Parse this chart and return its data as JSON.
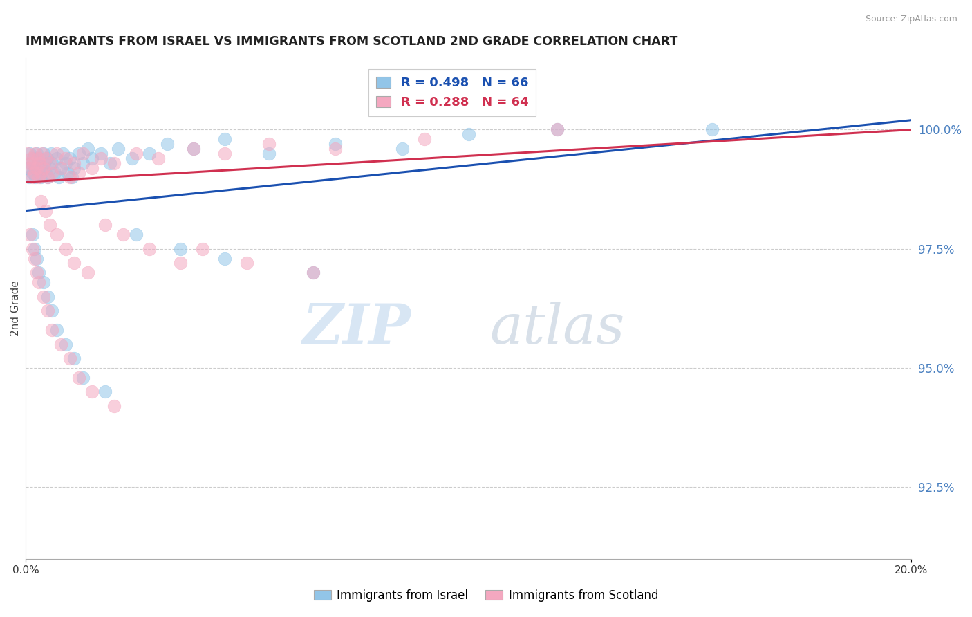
{
  "title": "IMMIGRANTS FROM ISRAEL VS IMMIGRANTS FROM SCOTLAND 2ND GRADE CORRELATION CHART",
  "source": "Source: ZipAtlas.com",
  "ylabel": "2nd Grade",
  "y_ticks": [
    92.5,
    95.0,
    97.5,
    100.0
  ],
  "y_tick_labels": [
    "92.5%",
    "95.0%",
    "97.5%",
    "100.0%"
  ],
  "x_min": 0.0,
  "x_max": 20.0,
  "y_min": 91.0,
  "y_max": 101.5,
  "legend_blue_R": "R = 0.498",
  "legend_blue_N": "N = 66",
  "legend_pink_R": "R = 0.288",
  "legend_pink_N": "N = 64",
  "legend_label_blue": "Immigrants from Israel",
  "legend_label_pink": "Immigrants from Scotland",
  "color_blue": "#92C5E8",
  "color_pink": "#F4A8C0",
  "color_line_blue": "#1A50B0",
  "color_line_pink": "#D03050",
  "color_axis_right": "#4A80C0",
  "trendline_blue_x0": 0.0,
  "trendline_blue_y0": 98.3,
  "trendline_blue_x1": 20.0,
  "trendline_blue_y1": 100.2,
  "trendline_pink_x0": 0.0,
  "trendline_pink_y0": 98.9,
  "trendline_pink_x1": 20.0,
  "trendline_pink_y1": 100.0,
  "israel_x": [
    0.05,
    0.08,
    0.1,
    0.12,
    0.15,
    0.18,
    0.2,
    0.22,
    0.25,
    0.28,
    0.3,
    0.32,
    0.35,
    0.38,
    0.4,
    0.42,
    0.45,
    0.48,
    0.5,
    0.55,
    0.58,
    0.6,
    0.65,
    0.7,
    0.75,
    0.8,
    0.85,
    0.9,
    0.95,
    1.0,
    1.05,
    1.1,
    1.2,
    1.3,
    1.4,
    1.5,
    1.7,
    1.9,
    2.1,
    2.4,
    2.8,
    3.2,
    3.8,
    4.5,
    5.5,
    7.0,
    8.5,
    10.0,
    12.0,
    15.5,
    0.15,
    0.2,
    0.25,
    0.3,
    0.4,
    0.5,
    0.6,
    0.7,
    0.9,
    1.1,
    1.3,
    1.8,
    2.5,
    3.5,
    4.5,
    6.5
  ],
  "israel_y": [
    99.2,
    99.0,
    99.5,
    99.3,
    99.1,
    99.4,
    99.2,
    99.0,
    99.5,
    99.3,
    99.1,
    99.4,
    99.0,
    99.2,
    99.5,
    99.3,
    99.1,
    99.4,
    99.0,
    99.2,
    99.5,
    99.3,
    99.1,
    99.4,
    99.0,
    99.2,
    99.5,
    99.3,
    99.1,
    99.4,
    99.0,
    99.2,
    99.5,
    99.3,
    99.6,
    99.4,
    99.5,
    99.3,
    99.6,
    99.4,
    99.5,
    99.7,
    99.6,
    99.8,
    99.5,
    99.7,
    99.6,
    99.9,
    100.0,
    100.0,
    97.8,
    97.5,
    97.3,
    97.0,
    96.8,
    96.5,
    96.2,
    95.8,
    95.5,
    95.2,
    94.8,
    94.5,
    97.8,
    97.5,
    97.3,
    97.0
  ],
  "scotland_x": [
    0.05,
    0.08,
    0.1,
    0.12,
    0.15,
    0.18,
    0.2,
    0.22,
    0.25,
    0.28,
    0.3,
    0.32,
    0.35,
    0.38,
    0.4,
    0.45,
    0.5,
    0.55,
    0.6,
    0.7,
    0.8,
    0.9,
    1.0,
    1.1,
    1.2,
    1.3,
    1.5,
    1.7,
    2.0,
    2.5,
    3.0,
    3.8,
    4.5,
    5.5,
    7.0,
    9.0,
    12.0,
    0.1,
    0.15,
    0.2,
    0.25,
    0.3,
    0.4,
    0.5,
    0.6,
    0.8,
    1.0,
    1.2,
    1.5,
    2.0,
    2.8,
    3.5,
    1.8,
    2.2,
    4.0,
    5.0,
    6.5,
    0.35,
    0.45,
    0.55,
    0.7,
    0.9,
    1.1,
    1.4
  ],
  "scotland_y": [
    99.5,
    99.3,
    99.2,
    99.4,
    99.0,
    99.3,
    99.1,
    99.5,
    99.2,
    99.4,
    99.0,
    99.3,
    99.1,
    99.5,
    99.2,
    99.4,
    99.0,
    99.3,
    99.1,
    99.5,
    99.2,
    99.4,
    99.0,
    99.3,
    99.1,
    99.5,
    99.2,
    99.4,
    99.3,
    99.5,
    99.4,
    99.6,
    99.5,
    99.7,
    99.6,
    99.8,
    100.0,
    97.8,
    97.5,
    97.3,
    97.0,
    96.8,
    96.5,
    96.2,
    95.8,
    95.5,
    95.2,
    94.8,
    94.5,
    94.2,
    97.5,
    97.2,
    98.0,
    97.8,
    97.5,
    97.2,
    97.0,
    98.5,
    98.3,
    98.0,
    97.8,
    97.5,
    97.2,
    97.0
  ]
}
